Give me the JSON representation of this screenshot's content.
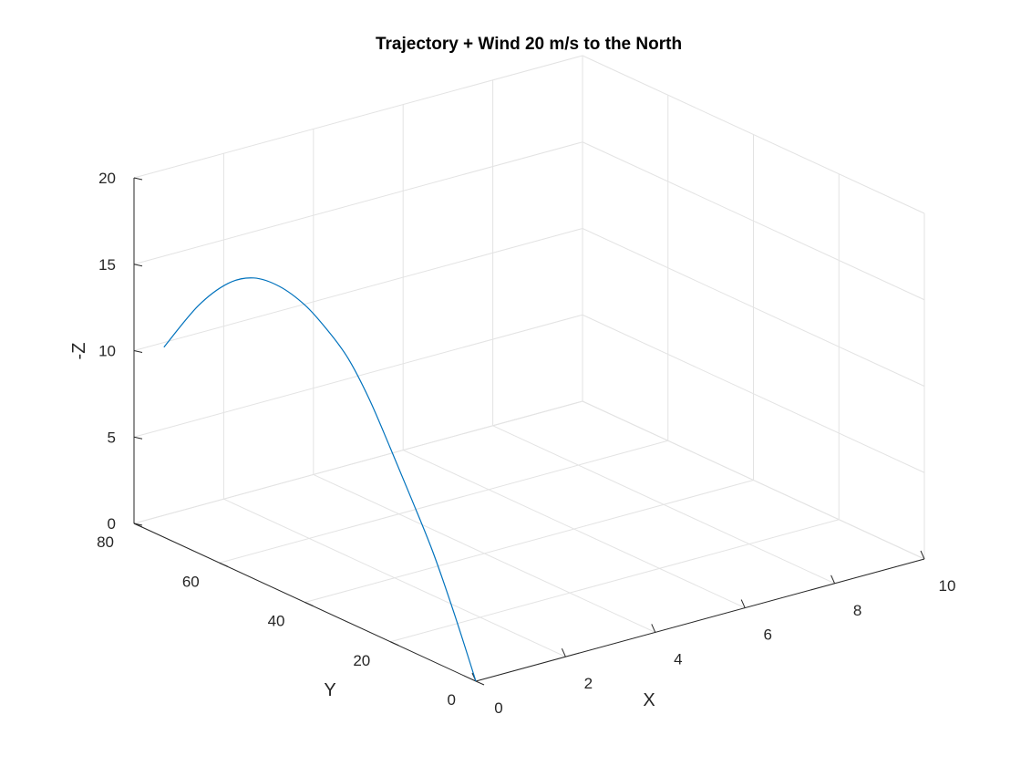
{
  "chart_data": {
    "type": "line",
    "projection": "3d",
    "title": "Trajectory + Wind 20 m/s to the North",
    "xlabel": "X",
    "ylabel": "Y",
    "zlabel": "-Z",
    "xlim": [
      0,
      10
    ],
    "ylim": [
      0,
      80
    ],
    "zlim": [
      0,
      20
    ],
    "x_ticks": [
      "0",
      "2",
      "4",
      "6",
      "8",
      "10"
    ],
    "y_ticks": [
      "0",
      "20",
      "40",
      "60",
      "80"
    ],
    "z_ticks": [
      "0",
      "5",
      "10",
      "15",
      "20"
    ],
    "grid": true,
    "box": "open",
    "series": [
      {
        "color": "#0072bd",
        "x": [
          0,
          0,
          0,
          0,
          0,
          0,
          0,
          0,
          0,
          0,
          0,
          0,
          0,
          0
        ],
        "y": [
          0,
          5,
          10,
          15,
          20,
          25,
          30,
          35,
          40,
          46,
          52,
          58,
          65,
          73
        ],
        "z": [
          0,
          3.3,
          6.3,
          8.8,
          11.2,
          13.5,
          15.3,
          16.4,
          17.2,
          17.6,
          17.4,
          16.4,
          14.3,
          11.0
        ]
      }
    ]
  }
}
